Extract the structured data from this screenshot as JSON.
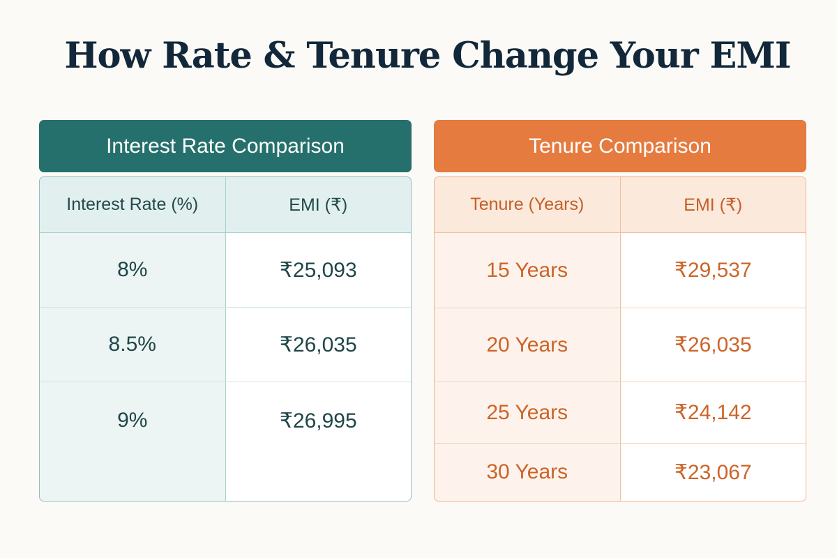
{
  "title": "How Rate & Tenure Change Your EMI",
  "interest_table": {
    "header": "Interest Rate Comparison",
    "columns": [
      "Interest Rate (%)",
      "EMI (₹)"
    ],
    "rows": [
      {
        "rate": "8%",
        "emi": "₹25,093"
      },
      {
        "rate": "8.5%",
        "emi": "₹26,035"
      },
      {
        "rate": "9%",
        "emi": "₹26,995"
      }
    ],
    "colors": {
      "header": "#25706c",
      "text": "#1f4648"
    }
  },
  "tenure_table": {
    "header": "Tenure Comparison",
    "columns": [
      "Tenure (Years)",
      "EMI (₹)"
    ],
    "rows": [
      {
        "tenure": "15 Years",
        "emi": "₹29,537"
      },
      {
        "tenure": "20 Years",
        "emi": "₹26,035"
      },
      {
        "tenure": "25 Years",
        "emi": "₹24,142"
      },
      {
        "tenure": "30 Years",
        "emi": "₹23,067"
      }
    ],
    "colors": {
      "header": "#e57b3f",
      "text": "#cc6428"
    }
  }
}
